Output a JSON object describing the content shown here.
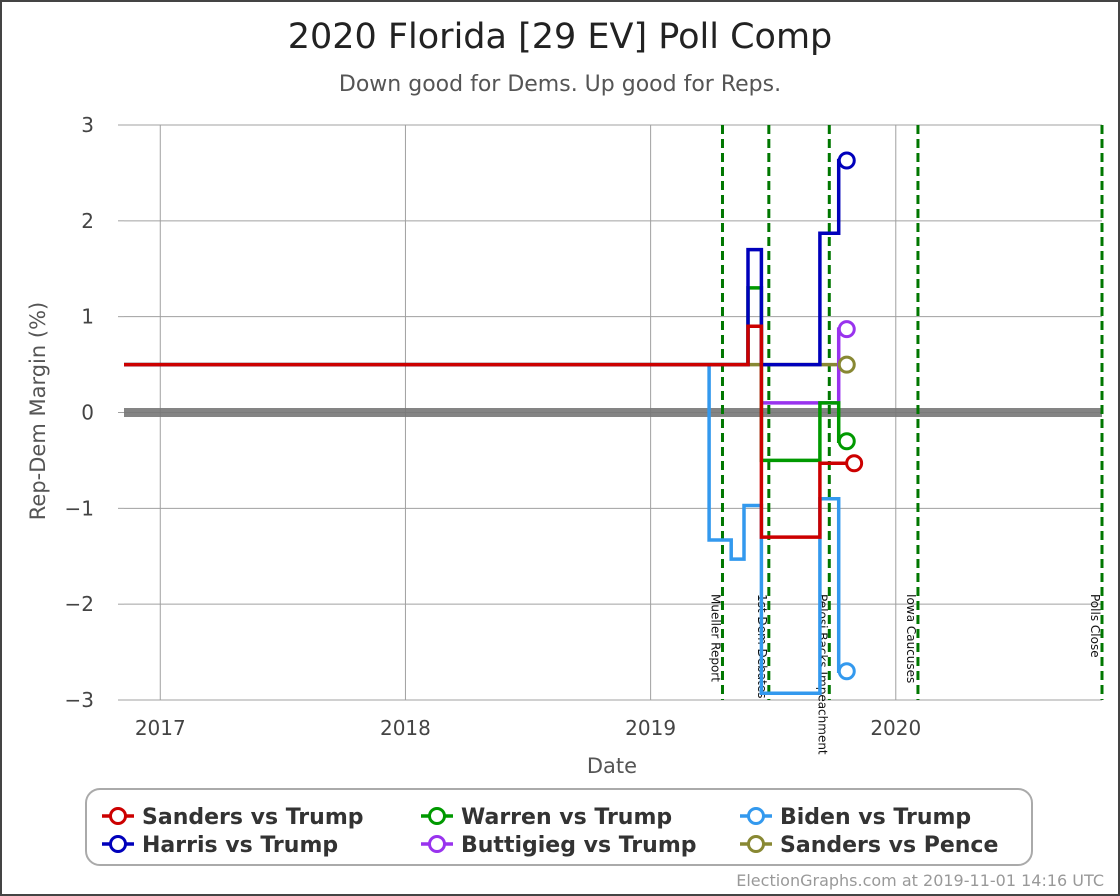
{
  "chart_data": {
    "type": "line",
    "title": "2020 Florida [29 EV] Poll Comp",
    "subtitle": "Down good for Dems. Up good for Reps.",
    "xlabel": "Date",
    "ylabel": "Rep-Dem Margin (%)",
    "ylim": [
      -3,
      3
    ],
    "xlim": [
      "2016-11-08",
      "2020-11-03"
    ],
    "grid": true,
    "y_ticks": [
      {
        "value": 3,
        "label": "3"
      },
      {
        "value": 2,
        "label": "2"
      },
      {
        "value": 1,
        "label": "1"
      },
      {
        "value": 0,
        "label": "0"
      },
      {
        "value": -1,
        "label": "−1"
      },
      {
        "value": -2,
        "label": "−2"
      },
      {
        "value": -3,
        "label": "−3"
      }
    ],
    "x_ticks": [
      {
        "value": "2017-01-01",
        "label": "2017"
      },
      {
        "value": "2018-01-01",
        "label": "2018"
      },
      {
        "value": "2019-01-01",
        "label": "2019"
      },
      {
        "value": "2020-01-01",
        "label": "2020"
      }
    ],
    "events": [
      {
        "date": "2019-04-18",
        "label": "Mueller Report"
      },
      {
        "date": "2019-06-26",
        "label": "1st Dem Debates"
      },
      {
        "date": "2019-09-24",
        "label": "Pelosi Backs Impeachment"
      },
      {
        "date": "2020-02-03",
        "label": "Iowa Caucuses"
      },
      {
        "date": "2020-11-03",
        "label": "Polls Close"
      }
    ],
    "legend_placement": "bottom",
    "series": [
      {
        "name": "Sanders vs Trump",
        "color": "#cc0000",
        "points": [
          {
            "x": "2016-11-08",
            "y": 0.5
          },
          {
            "x": "2019-05-26",
            "y": 0.5
          },
          {
            "x": "2019-05-26",
            "y": 0.9
          },
          {
            "x": "2019-06-15",
            "y": 0.9
          },
          {
            "x": "2019-06-15",
            "y": -1.3
          },
          {
            "x": "2019-09-10",
            "y": -1.3
          },
          {
            "x": "2019-09-10",
            "y": -0.53
          },
          {
            "x": "2019-10-31",
            "y": -0.53
          }
        ]
      },
      {
        "name": "Harris vs Trump",
        "color": "#0000bb",
        "points": [
          {
            "x": "2016-11-08",
            "y": 0.5
          },
          {
            "x": "2019-05-26",
            "y": 0.5
          },
          {
            "x": "2019-05-26",
            "y": 1.7
          },
          {
            "x": "2019-06-15",
            "y": 1.7
          },
          {
            "x": "2019-06-15",
            "y": 0.5
          },
          {
            "x": "2019-09-10",
            "y": 0.5
          },
          {
            "x": "2019-09-10",
            "y": 1.87
          },
          {
            "x": "2019-10-08",
            "y": 1.87
          },
          {
            "x": "2019-10-08",
            "y": 2.63
          },
          {
            "x": "2019-10-20",
            "y": 2.63
          }
        ]
      },
      {
        "name": "Warren vs Trump",
        "color": "#009900",
        "points": [
          {
            "x": "2016-11-08",
            "y": 0.5
          },
          {
            "x": "2019-05-26",
            "y": 0.5
          },
          {
            "x": "2019-05-26",
            "y": 1.3
          },
          {
            "x": "2019-06-15",
            "y": 1.3
          },
          {
            "x": "2019-06-15",
            "y": -0.5
          },
          {
            "x": "2019-09-10",
            "y": -0.5
          },
          {
            "x": "2019-09-10",
            "y": 0.1
          },
          {
            "x": "2019-10-08",
            "y": 0.1
          },
          {
            "x": "2019-10-08",
            "y": -0.3
          },
          {
            "x": "2019-10-20",
            "y": -0.3
          }
        ]
      },
      {
        "name": "Buttigieg vs Trump",
        "color": "#9933ee",
        "points": [
          {
            "x": "2019-06-15",
            "y": 0.1
          },
          {
            "x": "2019-10-08",
            "y": 0.1
          },
          {
            "x": "2019-10-08",
            "y": 0.87
          },
          {
            "x": "2019-10-20",
            "y": 0.87
          }
        ]
      },
      {
        "name": "Biden vs Trump",
        "color": "#3399ee",
        "points": [
          {
            "x": "2019-03-29",
            "y": 0.5
          },
          {
            "x": "2019-03-29",
            "y": -1.33
          },
          {
            "x": "2019-05-01",
            "y": -1.33
          },
          {
            "x": "2019-05-01",
            "y": -1.53
          },
          {
            "x": "2019-05-20",
            "y": -1.53
          },
          {
            "x": "2019-05-20",
            "y": -0.97
          },
          {
            "x": "2019-06-15",
            "y": -0.97
          },
          {
            "x": "2019-06-15",
            "y": -2.93
          },
          {
            "x": "2019-09-10",
            "y": -2.93
          },
          {
            "x": "2019-09-10",
            "y": -0.9
          },
          {
            "x": "2019-10-08",
            "y": -0.9
          },
          {
            "x": "2019-10-08",
            "y": -2.7
          },
          {
            "x": "2019-10-20",
            "y": -2.7
          }
        ]
      },
      {
        "name": "Sanders vs Pence",
        "color": "#888833",
        "points": [
          {
            "x": "2019-05-26",
            "y": 0.5
          },
          {
            "x": "2019-10-20",
            "y": 0.5
          }
        ]
      }
    ]
  },
  "footer": {
    "credit": "ElectionGraphs.com at 2019-11-01 14:16 UTC"
  }
}
